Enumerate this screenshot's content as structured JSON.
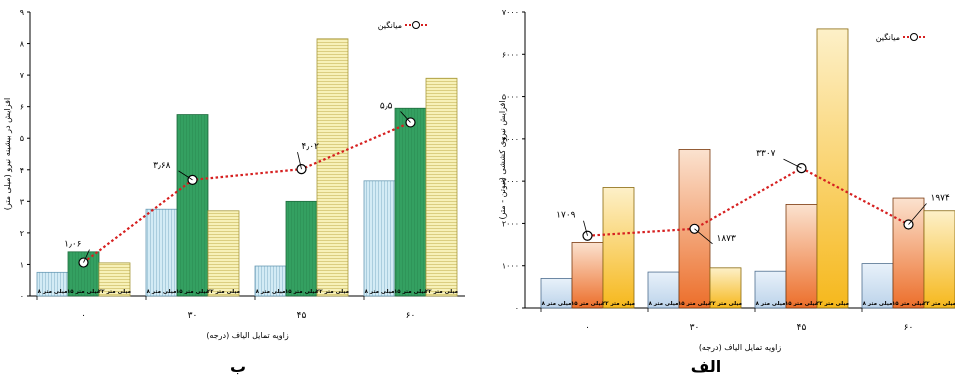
{
  "chart_data": [
    {
      "type": "bar",
      "panel_label": "ب",
      "xlabel": "زاویه تمایل الیاف (درجه)",
      "ylabel": "افزایش در بیشینه نیرو (میلی متر)",
      "categories": [
        "۰",
        "۳۰",
        "۴۵",
        "۶۰"
      ],
      "ylim": [
        0,
        9
      ],
      "yticks": [
        "۰",
        "۱",
        "۲",
        "۳",
        "۴",
        "۵",
        "۶",
        "۷",
        "۸",
        "۹"
      ],
      "series": [
        {
          "name": "۸ میلی متر",
          "values": [
            0.75,
            2.75,
            0.95,
            3.65
          ],
          "color": "#cfe8f3",
          "stripe": "vertical"
        },
        {
          "name": "۱۵ میلی متر",
          "values": [
            1.4,
            5.75,
            3.0,
            5.95
          ],
          "color": "#2e9e5b",
          "stripe": "solid"
        },
        {
          "name": "۲۲ میلی متر",
          "values": [
            1.05,
            2.7,
            8.15,
            6.9
          ],
          "color": "#f6efb0",
          "stripe": "horizontal"
        }
      ],
      "average": {
        "name": "میانگین",
        "values": [
          1.06,
          3.68,
          4.02,
          5.5
        ],
        "labels": [
          "۱٫۰۶",
          "۳٫۶۸",
          "۴٫۰۲",
          "۵٫۵"
        ],
        "color": "#d62020"
      },
      "legend_position": "top-right",
      "grid": false
    },
    {
      "type": "bar",
      "panel_label": "الف",
      "xlabel": "زاویه تمایل الیاف (درجه)",
      "ylabel": "افزایش نیروی کششی (نیوتن - متر)",
      "categories": [
        "۰",
        "۳۰",
        "۴۵",
        "۶۰"
      ],
      "ylim": [
        0,
        7000
      ],
      "yticks": [
        "۰",
        "۱۰۰۰",
        "۲۰۰۰",
        "۳۰۰۰",
        "۴۰۰۰",
        "۵۰۰۰",
        "۶۰۰۰",
        "۷۰۰۰"
      ],
      "series": [
        {
          "name": "۸ میلی متر",
          "values": [
            700,
            850,
            870,
            1050
          ],
          "color": "#d7e6f4",
          "stripe": "gradient"
        },
        {
          "name": "۱۵ میلی متر",
          "values": [
            1550,
            3750,
            2450,
            2600
          ],
          "color": "#f08a4b",
          "stripe": "gradient"
        },
        {
          "name": "۲۲ میلی متر",
          "values": [
            2850,
            950,
            6600,
            2300
          ],
          "color": "#f7c23a",
          "stripe": "gradient"
        }
      ],
      "average": {
        "name": "میانگین",
        "values": [
          1709,
          1873,
          3307,
          1974
        ],
        "labels": [
          "۱۷۰۹",
          "۱۸۷۳",
          "۳۳۰۷",
          "۱۹۷۴"
        ],
        "color": "#d62020"
      },
      "legend_position": "top-right",
      "grid": false
    }
  ]
}
